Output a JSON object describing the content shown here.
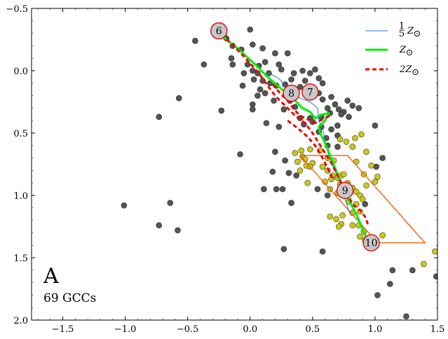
{
  "chart_data": {
    "type": "scatter",
    "title": "",
    "xlabel": "",
    "ylabel": "",
    "xlim": [
      -1.75,
      1.5
    ],
    "ylim": [
      2.0,
      -0.5
    ],
    "y_inverted": true,
    "x_ticks": [
      -1.5,
      -1.0,
      -0.5,
      0.0,
      0.5,
      1.0,
      1.5
    ],
    "x_tick_labels": [
      "−1.5",
      "−1.0",
      "−0.5",
      "0.0",
      "0.5",
      "1.0",
      "1.5"
    ],
    "y_ticks": [
      -0.5,
      0.0,
      0.5,
      1.0,
      1.5,
      2.0
    ],
    "y_tick_labels": [
      "−0.5",
      "0.0",
      "0.5",
      "1.0",
      "1.5",
      "2.0"
    ],
    "panel_label": "A",
    "panel_sublabel": "69 GCCs",
    "legend_position": "top-right",
    "legend": [
      {
        "label": "⅕Z☉",
        "num": "1",
        "den": "5",
        "sym": "Z",
        "sub": "⊙",
        "color": "#1f77d4",
        "style": "solid",
        "width": 1
      },
      {
        "label": "Z☉",
        "num": "",
        "den": "",
        "sym": "Z",
        "sub": "⊙",
        "color": "#00ee00",
        "style": "solid",
        "width": 3
      },
      {
        "label": "2Z☉",
        "num": "",
        "den": "",
        "sym": "2Z",
        "sub": "⊙",
        "color": "#ee0000",
        "style": "dashed",
        "width": 3
      }
    ],
    "gray_points_color": "#555555",
    "yellow_points_color": "#c8c820",
    "gray_points": [
      [
        -0.29,
        -0.32
      ],
      [
        -0.19,
        -0.26
      ],
      [
        -0.44,
        -0.24
      ],
      [
        0.0,
        -0.33
      ],
      [
        -0.14,
        -0.2
      ],
      [
        -0.07,
        -0.17
      ],
      [
        0.02,
        -0.21
      ],
      [
        0.1,
        -0.18
      ],
      [
        0.2,
        -0.14
      ],
      [
        0.3,
        -0.14
      ],
      [
        -0.15,
        -0.1
      ],
      [
        -0.14,
        -0.05
      ],
      [
        -0.02,
        -0.05
      ],
      [
        0.07,
        -0.04
      ],
      [
        0.12,
        -0.07
      ],
      [
        0.23,
        -0.05
      ],
      [
        -0.37,
        -0.05
      ],
      [
        -0.05,
        0.02
      ],
      [
        0.02,
        0.0
      ],
      [
        0.06,
        0.02
      ],
      [
        0.15,
        0.02
      ],
      [
        0.25,
        -0.01
      ],
      [
        0.35,
        0.02
      ],
      [
        0.42,
        0.0
      ],
      [
        0.48,
        0.02
      ],
      [
        0.52,
        -0.01
      ],
      [
        0.55,
        0.06
      ],
      [
        0.44,
        0.08
      ],
      [
        0.4,
        0.13
      ],
      [
        0.03,
        0.07
      ],
      [
        0.1,
        0.08
      ],
      [
        0.16,
        0.1
      ],
      [
        0.21,
        0.12
      ],
      [
        0.28,
        0.11
      ],
      [
        0.33,
        0.07
      ],
      [
        0.08,
        0.15
      ],
      [
        -0.06,
        0.12
      ],
      [
        0.06,
        0.2
      ],
      [
        0.12,
        0.18
      ],
      [
        0.19,
        0.24
      ],
      [
        0.02,
        0.27
      ],
      [
        0.32,
        0.24
      ],
      [
        0.55,
        0.18
      ],
      [
        0.58,
        0.23
      ],
      [
        0.62,
        0.3
      ],
      [
        0.65,
        0.21
      ],
      [
        0.68,
        0.27
      ],
      [
        0.78,
        0.24
      ],
      [
        0.82,
        0.28
      ],
      [
        0.87,
        0.3
      ],
      [
        0.75,
        0.33
      ],
      [
        0.71,
        0.31
      ],
      [
        -0.23,
        0.32
      ],
      [
        0.02,
        0.31
      ],
      [
        0.27,
        0.31
      ],
      [
        0.36,
        0.29
      ],
      [
        0.4,
        0.38
      ],
      [
        0.48,
        0.38
      ],
      [
        0.57,
        0.37
      ],
      [
        0.64,
        0.34
      ],
      [
        0.73,
        0.35
      ],
      [
        0.79,
        0.37
      ],
      [
        0.5,
        0.41
      ],
      [
        0.57,
        0.45
      ],
      [
        0.65,
        0.47
      ],
      [
        0.7,
        0.44
      ],
      [
        0.13,
        0.42
      ],
      [
        0.23,
        0.45
      ],
      [
        0.43,
        0.43
      ],
      [
        0.55,
        0.49
      ],
      [
        0.61,
        0.54
      ],
      [
        0.62,
        0.6
      ],
      [
        0.7,
        0.61
      ],
      [
        0.7,
        0.52
      ],
      [
        1.0,
        0.44
      ],
      [
        0.2,
        0.65
      ],
      [
        0.28,
        0.72
      ],
      [
        0.31,
        0.82
      ],
      [
        0.18,
        0.81
      ],
      [
        0.37,
        0.84
      ],
      [
        0.26,
        0.95
      ],
      [
        0.21,
        0.95
      ],
      [
        0.11,
        0.95
      ],
      [
        0.54,
        0.95
      ],
      [
        0.33,
        1.06
      ],
      [
        -0.08,
        0.67
      ],
      [
        -0.57,
        0.22
      ],
      [
        -0.73,
        0.37
      ],
      [
        -1.01,
        1.08
      ],
      [
        -0.64,
        1.06
      ],
      [
        -0.73,
        1.24
      ],
      [
        -0.58,
        1.28
      ],
      [
        0.27,
        1.43
      ],
      [
        0.58,
        1.45
      ],
      [
        0.92,
        1.07
      ],
      [
        0.62,
        1.0
      ],
      [
        1.06,
        0.7
      ],
      [
        1.01,
        0.77
      ],
      [
        1.3,
        1.6
      ],
      [
        1.14,
        1.6
      ],
      [
        1.12,
        1.71
      ],
      [
        1.02,
        1.8
      ],
      [
        1.25,
        1.97
      ],
      [
        1.49,
        1.65
      ],
      [
        0.52,
        0.15
      ],
      [
        0.58,
        0.1
      ],
      [
        0.37,
        0.19
      ],
      [
        0.45,
        0.2
      ]
    ],
    "yellow_points": [
      [
        0.36,
        0.66
      ],
      [
        0.41,
        0.64
      ],
      [
        0.42,
        0.69
      ],
      [
        0.44,
        0.71
      ],
      [
        0.5,
        0.74
      ],
      [
        0.38,
        0.73
      ],
      [
        0.45,
        0.76
      ],
      [
        0.48,
        0.77
      ],
      [
        0.4,
        0.8
      ],
      [
        0.62,
        0.7
      ],
      [
        0.67,
        0.72
      ],
      [
        0.58,
        0.77
      ],
      [
        0.62,
        0.8
      ],
      [
        0.66,
        0.84
      ],
      [
        0.7,
        0.86
      ],
      [
        0.73,
        0.84
      ],
      [
        0.75,
        0.83
      ],
      [
        0.6,
        0.89
      ],
      [
        0.65,
        0.87
      ],
      [
        0.72,
        0.91
      ],
      [
        0.78,
        0.9
      ],
      [
        0.82,
        0.94
      ],
      [
        0.85,
        0.97
      ],
      [
        0.88,
        1.0
      ],
      [
        0.93,
        0.92
      ],
      [
        0.9,
        1.03
      ],
      [
        0.85,
        1.07
      ],
      [
        0.79,
        1.05
      ],
      [
        0.82,
        1.14
      ],
      [
        0.88,
        1.13
      ],
      [
        0.74,
        1.16
      ],
      [
        0.69,
        1.19
      ],
      [
        0.64,
        1.17
      ],
      [
        0.73,
        1.23
      ],
      [
        0.82,
        1.24
      ],
      [
        0.87,
        1.24
      ],
      [
        0.91,
        1.29
      ],
      [
        0.88,
        1.33
      ],
      [
        0.92,
        1.36
      ],
      [
        0.95,
        1.34
      ],
      [
        0.71,
        1.25
      ],
      [
        0.79,
        0.98
      ],
      [
        0.46,
        0.9
      ],
      [
        0.95,
        1.42
      ],
      [
        1.06,
        1.32
      ],
      [
        0.64,
        0.95
      ],
      [
        0.91,
        0.83
      ],
      [
        0.7,
        0.98
      ],
      [
        0.93,
        0.65
      ],
      [
        0.84,
        0.54
      ],
      [
        0.89,
        0.51
      ],
      [
        0.77,
        0.57
      ],
      [
        0.72,
        0.55
      ],
      [
        0.82,
        0.61
      ],
      [
        1.0,
        0.89
      ],
      [
        1.02,
        0.85
      ],
      [
        1.39,
        1.55
      ],
      [
        1.48,
        1.45
      ],
      [
        0.97,
        0.76
      ],
      [
        0.85,
        0.73
      ],
      [
        0.48,
        0.63
      ],
      [
        0.56,
        0.64
      ]
    ],
    "polygon_color": "#ff5500",
    "polygon": [
      [
        0.4,
        0.68
      ],
      [
        0.78,
        0.68
      ],
      [
        1.4,
        1.38
      ],
      [
        1.02,
        1.38
      ]
    ],
    "tracks": [
      {
        "series": "1/5 Z☉",
        "color": "#1f77d4",
        "width": 1,
        "dash": "",
        "points": [
          [
            -0.28,
            -0.32
          ],
          [
            -0.1,
            -0.18
          ],
          [
            0.05,
            -0.05
          ],
          [
            0.13,
            0.04
          ],
          [
            0.17,
            0.03
          ],
          [
            0.21,
            0.05
          ],
          [
            0.25,
            0.08
          ],
          [
            0.27,
            0.12
          ],
          [
            0.33,
            0.18
          ],
          [
            0.4,
            0.22
          ],
          [
            0.48,
            0.25
          ],
          [
            0.54,
            0.3
          ],
          [
            0.55,
            0.4
          ],
          [
            0.58,
            0.46
          ],
          [
            0.6,
            0.56
          ],
          [
            0.62,
            0.65
          ],
          [
            0.66,
            0.76
          ],
          [
            0.7,
            0.85
          ],
          [
            0.74,
            0.95
          ],
          [
            0.76,
            1.03
          ],
          [
            0.8,
            1.15
          ]
        ]
      },
      {
        "series": "Z☉",
        "color": "#00ee00",
        "width": 3,
        "dash": "",
        "points": [
          [
            -0.28,
            -0.32
          ],
          [
            -0.1,
            -0.18
          ],
          [
            0.05,
            -0.04
          ],
          [
            0.15,
            0.06
          ],
          [
            0.22,
            0.12
          ],
          [
            0.28,
            0.17
          ],
          [
            0.36,
            0.24
          ],
          [
            0.42,
            0.3
          ],
          [
            0.48,
            0.33
          ],
          [
            0.52,
            0.38
          ],
          [
            0.58,
            0.35
          ],
          [
            0.63,
            0.34
          ],
          [
            0.6,
            0.4
          ],
          [
            0.55,
            0.45
          ],
          [
            0.56,
            0.5
          ],
          [
            0.6,
            0.58
          ],
          [
            0.64,
            0.68
          ],
          [
            0.68,
            0.78
          ],
          [
            0.72,
            0.88
          ],
          [
            0.77,
            1.0
          ],
          [
            0.85,
            1.15
          ],
          [
            0.9,
            1.27
          ],
          [
            0.94,
            1.37
          ]
        ]
      },
      {
        "series": "2Z☉",
        "color": "#ee0000",
        "width": 3,
        "dash": "6,4",
        "points": [
          [
            -0.28,
            -0.32
          ],
          [
            -0.15,
            -0.22
          ],
          [
            0.0,
            -0.06
          ],
          [
            0.1,
            0.06
          ],
          [
            0.14,
            0.12
          ],
          [
            0.2,
            0.2
          ],
          [
            0.28,
            0.28
          ],
          [
            0.36,
            0.36
          ],
          [
            0.44,
            0.42
          ],
          [
            0.5,
            0.5
          ],
          [
            0.55,
            0.58
          ],
          [
            0.6,
            0.66
          ],
          [
            0.65,
            0.74
          ],
          [
            0.7,
            0.84
          ],
          [
            0.74,
            0.92
          ],
          [
            0.78,
            1.0
          ],
          [
            0.83,
            1.08
          ],
          [
            0.88,
            1.12
          ],
          [
            0.92,
            1.17
          ],
          [
            0.95,
            1.25
          ]
        ]
      },
      {
        "series": "2Z☉",
        "color": "#ee0000",
        "width": 3,
        "dash": "6,4",
        "points": [
          [
            0.18,
            0.11
          ],
          [
            0.24,
            0.18
          ],
          [
            0.3,
            0.24
          ],
          [
            0.36,
            0.32
          ],
          [
            0.4,
            0.36
          ],
          [
            0.46,
            0.39
          ],
          [
            0.52,
            0.42
          ],
          [
            0.6,
            0.38
          ],
          [
            0.64,
            0.36
          ]
        ]
      },
      {
        "series": "2Z☉",
        "color": "#ee0000",
        "width": 3,
        "dash": "6,4",
        "points": [
          [
            0.3,
            0.4
          ],
          [
            0.38,
            0.46
          ],
          [
            0.46,
            0.53
          ],
          [
            0.52,
            0.6
          ],
          [
            0.58,
            0.7
          ],
          [
            0.63,
            0.8
          ],
          [
            0.67,
            0.88
          ]
        ]
      }
    ],
    "age_markers": [
      {
        "label": "6",
        "x": -0.25,
        "y": -0.32
      },
      {
        "label": "8",
        "x": 0.33,
        "y": 0.18
      },
      {
        "label": "7",
        "x": 0.48,
        "y": 0.17
      },
      {
        "label": "9",
        "x": 0.76,
        "y": 0.96
      },
      {
        "label": "10",
        "x": 0.97,
        "y": 1.38
      }
    ]
  }
}
